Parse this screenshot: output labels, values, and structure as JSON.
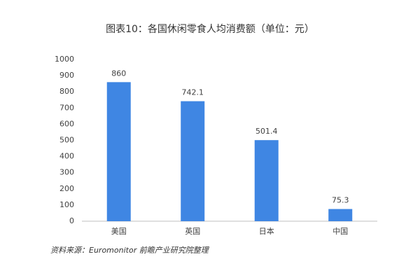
{
  "chart_data": {
    "type": "bar",
    "title": "图表10：各国休闲零食人均消费额（单位：元）",
    "categories": [
      "美国",
      "英国",
      "日本",
      "中国"
    ],
    "values": [
      860,
      742.1,
      501.4,
      75.3
    ],
    "color": "#3f86e3",
    "ylim": [
      0,
      1000
    ],
    "yticks": [
      0,
      100,
      200,
      300,
      400,
      500,
      600,
      700,
      800,
      900,
      1000
    ],
    "grid": false,
    "source": "资料来源：Euromonitor 前瞻产业研究院整理"
  }
}
